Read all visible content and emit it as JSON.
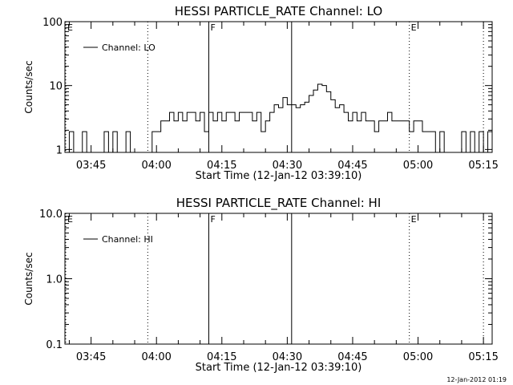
{
  "footer": {
    "timestamp": "12-Jan-2012 01:19"
  },
  "chart_data": [
    {
      "type": "line",
      "title": "HESSI PARTICLE_RATE Channel: LO",
      "xlabel": "Start Time (12-Jan-12 03:39:10)",
      "ylabel": "Counts/sec",
      "yscale": "log",
      "xlim": [
        "03:39",
        "05:17"
      ],
      "ylim": [
        0.9,
        100
      ],
      "x_ticks": [
        "03:45",
        "04:00",
        "04:15",
        "04:30",
        "04:45",
        "05:00",
        "05:15"
      ],
      "y_ticks": [
        "1",
        "10",
        "100"
      ],
      "grid": false,
      "legend": "top-left",
      "series": [
        {
          "name": "Channel: LO",
          "color": "#000000",
          "x": [
            "03:39",
            "03:40",
            "03:41",
            "03:42",
            "03:43",
            "03:44",
            "03:45",
            "03:46",
            "03:47",
            "03:48",
            "03:49",
            "03:50",
            "03:51",
            "03:52",
            "03:53",
            "03:54",
            "03:55",
            "03:56",
            "03:57",
            "03:58",
            "03:59",
            "04:00",
            "04:01",
            "04:02",
            "04:03",
            "04:04",
            "04:05",
            "04:06",
            "04:07",
            "04:08",
            "04:09",
            "04:10",
            "04:11",
            "04:12",
            "04:13",
            "04:14",
            "04:15",
            "04:16",
            "04:17",
            "04:18",
            "04:19",
            "04:20",
            "04:21",
            "04:22",
            "04:23",
            "04:24",
            "04:25",
            "04:26",
            "04:27",
            "04:28",
            "04:29",
            "04:30",
            "04:31",
            "04:32",
            "04:33",
            "04:34",
            "04:35",
            "04:36",
            "04:37",
            "04:38",
            "04:39",
            "04:40",
            "04:41",
            "04:42",
            "04:43",
            "04:44",
            "04:45",
            "04:46",
            "04:47",
            "04:48",
            "04:49",
            "04:50",
            "04:51",
            "04:52",
            "04:53",
            "04:54",
            "04:55",
            "04:56",
            "04:57",
            "04:58",
            "04:59",
            "05:00",
            "05:01",
            "05:02",
            "05:03",
            "05:04",
            "05:05",
            "05:06",
            "05:07",
            "05:08",
            "05:09",
            "05:10",
            "05:11",
            "05:12",
            "05:13",
            "05:14",
            "05:15",
            "05:16"
          ],
          "values": [
            0.9,
            1.9,
            0.9,
            0.9,
            1.9,
            0.9,
            0.9,
            0.9,
            0.9,
            1.9,
            0.9,
            1.9,
            0.9,
            0.9,
            1.9,
            0.9,
            0.9,
            0.9,
            0.9,
            0.9,
            1.9,
            1.9,
            2.8,
            2.8,
            3.8,
            2.8,
            3.8,
            2.8,
            3.8,
            3.8,
            2.8,
            3.8,
            1.9,
            3.8,
            2.8,
            3.8,
            2.8,
            3.8,
            3.8,
            2.8,
            3.8,
            3.8,
            3.8,
            2.8,
            3.8,
            1.9,
            2.8,
            3.8,
            5.0,
            4.5,
            6.5,
            5.0,
            5.0,
            4.5,
            5.0,
            5.5,
            7.0,
            8.5,
            10.5,
            10.0,
            8.0,
            6.0,
            4.5,
            5.0,
            3.8,
            2.8,
            3.8,
            2.8,
            3.8,
            2.8,
            2.8,
            1.9,
            2.8,
            2.8,
            3.8,
            2.8,
            2.8,
            2.8,
            2.8,
            1.9,
            2.8,
            2.8,
            1.9,
            1.9,
            1.9,
            0.9,
            1.9,
            0.9,
            0.9,
            0.9,
            0.9,
            1.9,
            0.9,
            1.9,
            0.9,
            1.9,
            0.9,
            1.9
          ]
        }
      ],
      "annotations": [
        {
          "label": "E",
          "time": "03:39",
          "style": "dotted"
        },
        {
          "label": "",
          "time": "03:58",
          "style": "dotted"
        },
        {
          "label": "F",
          "time": "04:12",
          "style": "solid"
        },
        {
          "label": "",
          "time": "04:31",
          "style": "solid"
        },
        {
          "label": "E",
          "time": "04:58",
          "style": "dotted"
        },
        {
          "label": "",
          "time": "05:15",
          "style": "dotted"
        }
      ]
    },
    {
      "type": "line",
      "title": "HESSI PARTICLE_RATE Channel: HI",
      "xlabel": "Start Time (12-Jan-12 03:39:10)",
      "ylabel": "Counts/sec",
      "yscale": "log",
      "xlim": [
        "03:39",
        "05:17"
      ],
      "ylim": [
        0.1,
        10
      ],
      "x_ticks": [
        "03:45",
        "04:00",
        "04:15",
        "04:30",
        "04:45",
        "05:00",
        "05:15"
      ],
      "y_ticks": [
        "0.1",
        "1.0",
        "10.0"
      ],
      "grid": false,
      "legend": "top-left",
      "series": [
        {
          "name": "Channel: HI",
          "color": "#000000",
          "x": [],
          "values": []
        }
      ],
      "annotations": [
        {
          "label": "E",
          "time": "03:39",
          "style": "dotted"
        },
        {
          "label": "",
          "time": "03:58",
          "style": "dotted"
        },
        {
          "label": "F",
          "time": "04:12",
          "style": "solid"
        },
        {
          "label": "",
          "time": "04:31",
          "style": "solid"
        },
        {
          "label": "E",
          "time": "04:58",
          "style": "dotted"
        },
        {
          "label": "",
          "time": "05:15",
          "style": "dotted"
        }
      ]
    }
  ]
}
